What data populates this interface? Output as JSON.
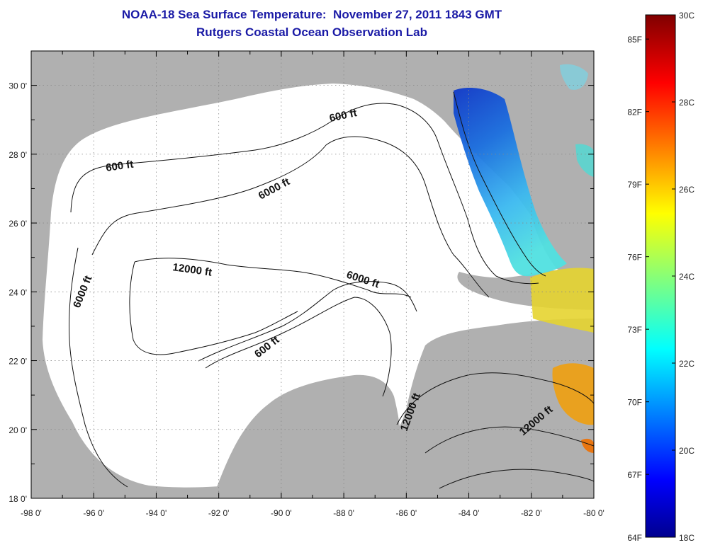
{
  "header": {
    "title": "NOAA-18 Sea Surface Temperature:  November 27, 2011 1843 GMT",
    "subtitle": "Rutgers Coastal Ocean Observation Lab"
  },
  "map": {
    "lon_range": [
      -98,
      -80
    ],
    "lat_range": [
      18,
      31
    ],
    "lon_ticks": [
      "-98 0'",
      "-96 0'",
      "-94 0'",
      "-92 0'",
      "-90 0'",
      "-88 0'",
      "-86 0'",
      "-84 0'",
      "-82 0'",
      "-80 0'"
    ],
    "lat_ticks": [
      "18 0'",
      "20 0'",
      "22 0'",
      "24 0'",
      "26 0'",
      "28 0'",
      "30 0'"
    ],
    "contour_labels": [
      "600 ft",
      "6000 ft",
      "12000 ft",
      "6000 ft",
      "6000 ft",
      "600 ft",
      "600 ft",
      "12000 ft",
      "12000 ft"
    ],
    "grid": true,
    "land_color": "#b0b0b0",
    "ocean_color": "#ffffff"
  },
  "colorbar": {
    "fahrenheit": [
      "85F",
      "82F",
      "79F",
      "76F",
      "73F",
      "70F",
      "67F",
      "64F"
    ],
    "celsius": [
      "30C",
      "28C",
      "26C",
      "24C",
      "22C",
      "20C",
      "18C"
    ],
    "range_c": [
      18,
      30
    ],
    "colormap": "jet"
  }
}
